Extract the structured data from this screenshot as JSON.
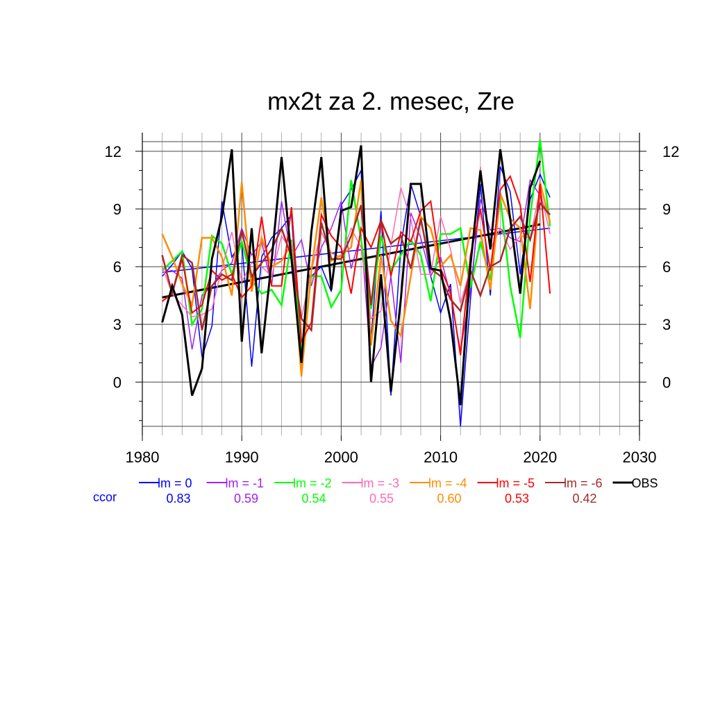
{
  "chart_data": {
    "type": "line",
    "title": "mx2t za 2. mesec, Zre",
    "xlabel": "",
    "ylabel": "",
    "xlim": [
      1980,
      2030
    ],
    "ylim": [
      -2.3,
      12.5
    ],
    "x_ticks": [
      1980,
      1990,
      2000,
      2010,
      2020,
      2030
    ],
    "y_ticks": [
      0,
      3,
      6,
      9,
      12
    ],
    "grid": true,
    "x": [
      1982,
      1983,
      1984,
      1985,
      1986,
      1987,
      1988,
      1989,
      1990,
      1991,
      1992,
      1993,
      1994,
      1995,
      1996,
      1997,
      1998,
      1999,
      2000,
      2001,
      2002,
      2003,
      2004,
      2005,
      2006,
      2007,
      2008,
      2009,
      2010,
      2011,
      2012,
      2013,
      2014,
      2015,
      2016,
      2017,
      2018,
      2019,
      2020,
      2021
    ],
    "series": [
      {
        "name": "lm = 0",
        "color": "#0000ff",
        "width": 1.5,
        "ccor": "0.83",
        "values": [
          5.5,
          6.1,
          6.8,
          5.9,
          1.3,
          2.9,
          9.4,
          6.5,
          7.3,
          0.8,
          6.5,
          7.5,
          8.0,
          8.7,
          1.2,
          5.5,
          6.0,
          4.7,
          9.2,
          10.0,
          11.0,
          2.2,
          8.9,
          -0.7,
          7.1,
          10.3,
          8.6,
          5.5,
          3.6,
          5.1,
          -2.3,
          4.3,
          10.3,
          4.5,
          11.2,
          9.9,
          5.6,
          9.5,
          10.8,
          9.6
        ],
        "trend": [
          5.7,
          8.0
        ]
      },
      {
        "name": "lm = -1",
        "color": "#a020f0",
        "width": 1.5,
        "ccor": "0.59",
        "values": [
          5.7,
          5.8,
          5.4,
          1.7,
          4.5,
          5.0,
          5.8,
          6.2,
          8.0,
          6.6,
          7.3,
          5.0,
          9.4,
          6.5,
          7.4,
          5.0,
          7.0,
          8.0,
          9.4,
          5.9,
          7.7,
          0.8,
          1.8,
          5.5,
          1.0,
          8.8,
          7.5,
          5.5,
          6.5,
          4.5,
          1.6,
          4.8,
          9.5,
          7.9,
          8.0,
          7.5,
          7.3,
          10.5,
          9.7,
          8.4
        ]
      },
      {
        "name": "lm = -2",
        "color": "#00ff00",
        "width": 2.5,
        "ccor": "0.54",
        "values": [
          5.8,
          6.3,
          6.8,
          3.0,
          3.8,
          7.6,
          7.2,
          5.6,
          7.3,
          5.3,
          4.6,
          4.8,
          4.0,
          7.4,
          1.4,
          5.5,
          5.5,
          3.9,
          4.8,
          10.5,
          7.4,
          3.8,
          7.6,
          5.8,
          6.6,
          7.4,
          6.6,
          4.2,
          7.7,
          7.7,
          8.0,
          4.9,
          7.3,
          5.3,
          9.6,
          5.0,
          2.3,
          8.6,
          12.6,
          8.1
        ]
      },
      {
        "name": "lm = -3",
        "color": "#ff69b4",
        "width": 1.5,
        "ccor": "0.55",
        "values": [
          6.0,
          4.6,
          4.0,
          3.4,
          3.5,
          3.8,
          5.9,
          7.8,
          5.2,
          6.2,
          6.0,
          5.5,
          7.6,
          6.8,
          3.3,
          5.8,
          7.8,
          6.7,
          6.5,
          8.0,
          7.0,
          3.3,
          3.7,
          7.1,
          10.1,
          8.5,
          5.6,
          5.6,
          8.6,
          6.9,
          4.1,
          5.9,
          11.2,
          6.9,
          8.0,
          6.9,
          7.6,
          7.5,
          10.0,
          7.7
        ]
      },
      {
        "name": "lm = -4",
        "color": "#ff8c00",
        "width": 2.5,
        "ccor": "0.60",
        "values": [
          7.7,
          6.5,
          5.1,
          4.0,
          7.5,
          7.5,
          6.5,
          4.5,
          10.4,
          4.7,
          7.5,
          6.0,
          6.3,
          7.2,
          0.3,
          5.8,
          9.6,
          6.3,
          6.6,
          7.0,
          10.5,
          1.9,
          6.6,
          3.2,
          2.4,
          5.5,
          8.6,
          8.0,
          6.0,
          6.6,
          5.0,
          8.0,
          7.9,
          4.8,
          9.8,
          8.5,
          8.0,
          3.8,
          10.4,
          8.3
        ]
      },
      {
        "name": "lm = -5",
        "color": "#ff0000",
        "width": 2.0,
        "ccor": "0.53",
        "values": [
          4.2,
          4.6,
          6.4,
          3.6,
          4.0,
          5.8,
          5.3,
          5.6,
          4.4,
          5.0,
          8.6,
          5.0,
          5.0,
          9.1,
          2.1,
          3.1,
          8.7,
          7.6,
          7.0,
          4.6,
          8.0,
          7.0,
          8.4,
          5.5,
          7.8,
          7.3,
          8.9,
          9.4,
          5.9,
          4.7,
          1.4,
          6.6,
          9.0,
          5.8,
          10.0,
          10.7,
          9.2,
          5.2,
          10.3,
          4.6
        ]
      },
      {
        "name": "lm = -6",
        "color": "#a52a2a",
        "width": 2.5,
        "ccor": "0.42",
        "values": [
          6.6,
          4.6,
          6.6,
          6.2,
          2.7,
          5.0,
          5.6,
          5.3,
          7.9,
          5.5,
          6.2,
          6.9,
          8.0,
          6.5,
          3.3,
          2.7,
          8.3,
          6.4,
          6.4,
          7.6,
          9.2,
          4.0,
          8.4,
          7.2,
          7.6,
          5.9,
          8.5,
          5.9,
          5.5,
          4.3,
          3.7,
          5.8,
          4.5,
          6.0,
          6.3,
          8.0,
          8.6,
          7.4,
          9.3,
          8.7
        ]
      },
      {
        "name": "OBS",
        "color": "#000000",
        "width": 3.0,
        "ccor": "",
        "values": [
          3.1,
          5.0,
          3.5,
          -0.7,
          0.7,
          6.4,
          8.6,
          12.1,
          2.1,
          8.0,
          1.5,
          6.3,
          11.7,
          6.4,
          1.0,
          7.8,
          11.7,
          4.8,
          8.9,
          9.1,
          12.3,
          0.0,
          5.6,
          -0.5,
          4.3,
          10.3,
          10.3,
          5.9,
          5.8,
          3.2,
          -1.2,
          6.1,
          11.0,
          6.9,
          12.1,
          8.5,
          4.6,
          10.1,
          11.5,
          null
        ],
        "trend": [
          4.4,
          8.2
        ]
      }
    ],
    "legend_position": "bottom",
    "ccor_label": "ccor"
  }
}
